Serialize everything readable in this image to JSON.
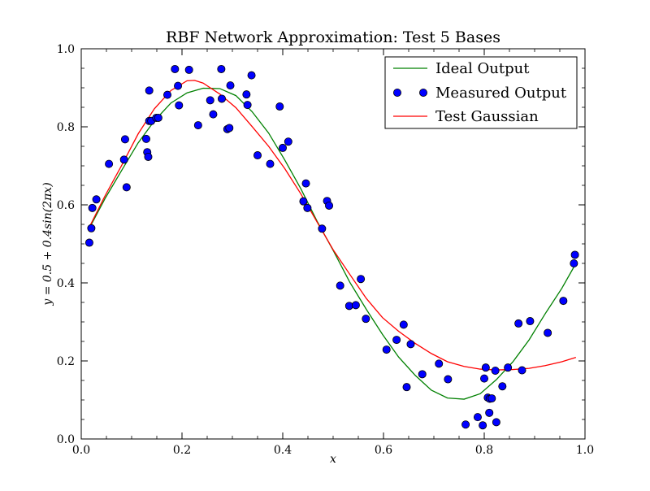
{
  "chart_data": {
    "type": "scatter",
    "title": "RBF Network Approximation: Test 5 Bases",
    "xlabel": "x",
    "ylabel": "y = 0.5 + 0.4sin(2πx)",
    "xlim": [
      0.0,
      1.0
    ],
    "ylim": [
      0.0,
      1.0
    ],
    "x_ticks": [
      "0.0",
      "0.2",
      "0.4",
      "0.6",
      "0.8",
      "1.0"
    ],
    "y_ticks": [
      "0.0",
      "0.2",
      "0.4",
      "0.6",
      "0.8",
      "1.0"
    ],
    "grid": false,
    "legend_position": "top-right",
    "series": [
      {
        "name": "Ideal Output",
        "kind": "line",
        "color": "#008000",
        "x": [
          0.016,
          0.048,
          0.081,
          0.113,
          0.145,
          0.178,
          0.21,
          0.242,
          0.275,
          0.307,
          0.339,
          0.372,
          0.404,
          0.436,
          0.469,
          0.501,
          0.533,
          0.566,
          0.598,
          0.63,
          0.663,
          0.695,
          0.727,
          0.76,
          0.792,
          0.824,
          0.857,
          0.889,
          0.921,
          0.954,
          0.982
        ],
        "y": [
          0.54,
          0.618,
          0.69,
          0.759,
          0.815,
          0.861,
          0.887,
          0.899,
          0.898,
          0.88,
          0.839,
          0.784,
          0.715,
          0.641,
          0.556,
          0.481,
          0.402,
          0.332,
          0.268,
          0.21,
          0.163,
          0.125,
          0.105,
          0.102,
          0.116,
          0.152,
          0.198,
          0.254,
          0.321,
          0.386,
          0.45
        ]
      },
      {
        "name": "Measured Output",
        "kind": "scatter",
        "color": "#0000ff",
        "x": [
          0.016,
          0.02,
          0.022,
          0.03,
          0.055,
          0.085,
          0.087,
          0.09,
          0.129,
          0.131,
          0.133,
          0.135,
          0.135,
          0.139,
          0.149,
          0.153,
          0.171,
          0.186,
          0.192,
          0.194,
          0.214,
          0.232,
          0.256,
          0.262,
          0.278,
          0.279,
          0.29,
          0.294,
          0.296,
          0.328,
          0.33,
          0.338,
          0.35,
          0.375,
          0.394,
          0.4,
          0.411,
          0.441,
          0.446,
          0.449,
          0.478,
          0.488,
          0.492,
          0.514,
          0.532,
          0.545,
          0.555,
          0.565,
          0.606,
          0.626,
          0.64,
          0.646,
          0.654,
          0.677,
          0.71,
          0.728,
          0.763,
          0.787,
          0.797,
          0.8,
          0.803,
          0.807,
          0.81,
          0.811,
          0.815,
          0.822,
          0.824,
          0.836,
          0.847,
          0.868,
          0.875,
          0.891,
          0.926,
          0.957,
          0.978,
          0.98
        ],
        "y": [
          0.503,
          0.54,
          0.592,
          0.614,
          0.705,
          0.716,
          0.768,
          0.645,
          0.769,
          0.735,
          0.723,
          0.893,
          0.815,
          0.815,
          0.823,
          0.823,
          0.882,
          0.948,
          0.905,
          0.855,
          0.946,
          0.804,
          0.868,
          0.832,
          0.948,
          0.872,
          0.794,
          0.797,
          0.906,
          0.883,
          0.856,
          0.932,
          0.727,
          0.705,
          0.852,
          0.746,
          0.762,
          0.609,
          0.655,
          0.592,
          0.539,
          0.61,
          0.598,
          0.393,
          0.341,
          0.343,
          0.41,
          0.308,
          0.229,
          0.254,
          0.293,
          0.133,
          0.243,
          0.166,
          0.193,
          0.153,
          0.037,
          0.056,
          0.035,
          0.155,
          0.183,
          0.106,
          0.067,
          0.103,
          0.104,
          0.175,
          0.043,
          0.135,
          0.183,
          0.296,
          0.176,
          0.302,
          0.272,
          0.354,
          0.45,
          0.472
        ]
      },
      {
        "name": "Test Gaussian",
        "kind": "line",
        "color": "#ff0000",
        "x": [
          0.016,
          0.048,
          0.081,
          0.113,
          0.145,
          0.178,
          0.21,
          0.225,
          0.242,
          0.275,
          0.307,
          0.339,
          0.372,
          0.404,
          0.436,
          0.469,
          0.501,
          0.533,
          0.566,
          0.598,
          0.63,
          0.663,
          0.695,
          0.727,
          0.76,
          0.792,
          0.824,
          0.857,
          0.889,
          0.921,
          0.954,
          0.982
        ],
        "y": [
          0.543,
          0.625,
          0.703,
          0.782,
          0.846,
          0.893,
          0.918,
          0.919,
          0.912,
          0.884,
          0.849,
          0.801,
          0.75,
          0.693,
          0.628,
          0.554,
          0.483,
          0.422,
          0.36,
          0.311,
          0.276,
          0.245,
          0.219,
          0.198,
          0.186,
          0.179,
          0.177,
          0.178,
          0.181,
          0.188,
          0.198,
          0.209
        ]
      }
    ]
  }
}
